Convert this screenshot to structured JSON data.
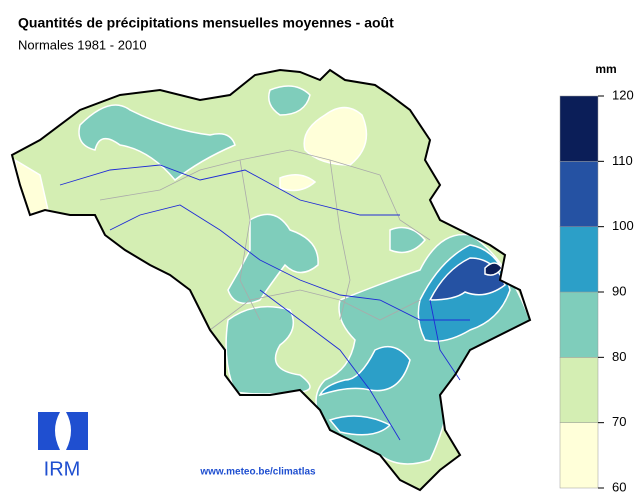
{
  "header": {
    "title": "Quantités de précipitations mensuelles moyennes - août",
    "subtitle": "Normales 1981 - 2010"
  },
  "legend": {
    "unit": "mm",
    "ticks": [
      60,
      70,
      80,
      90,
      100,
      110,
      120
    ],
    "colors": [
      "#ffffd9",
      "#d4eeb3",
      "#7fcdbb",
      "#2c9fc8",
      "#2552a3",
      "#0b1e58"
    ]
  },
  "logo": {
    "text": "IRM"
  },
  "footer": {
    "url": "www.meteo.be/climatlas"
  }
}
